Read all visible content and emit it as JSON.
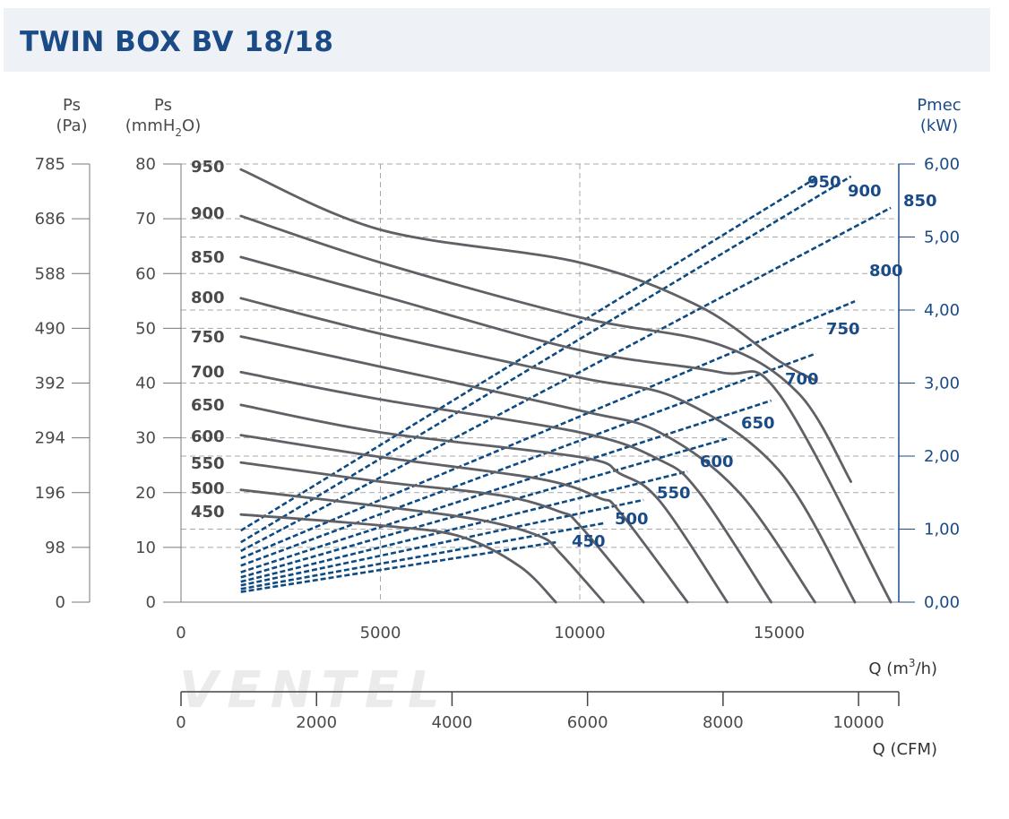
{
  "title": "TWIN BOX BV 18/18",
  "brand": "VENTEL",
  "colors": {
    "curve": "#5f6166",
    "power": "#0d4a82",
    "axis_blue": "#1a4b87",
    "text": "#4a4a4a",
    "grid": "#a8a8a8",
    "header_bg": "#eef1f5"
  },
  "chart_data": {
    "type": "line",
    "title": "TWIN BOX BV 18/18",
    "x_axes": {
      "primary": {
        "label": "Q (m3/h)",
        "label_base": "Q (m",
        "label_sup": "3",
        "label_tail": "/h)",
        "range": [
          0,
          18000
        ],
        "ticks": [
          "0",
          "5000",
          "10000",
          "15000"
        ],
        "tick_values": [
          0,
          5000,
          10000,
          15000
        ]
      },
      "secondary": {
        "label": "Q (CFM)",
        "range": [
          0,
          10594
        ],
        "ticks": [
          "0",
          "2000",
          "4000",
          "6000",
          "8000",
          "10000"
        ],
        "tick_values": [
          0,
          2000,
          4000,
          6000,
          8000,
          10000
        ]
      }
    },
    "y_axes": {
      "pa": {
        "label_top": "Ps",
        "label_bottom": "(Pa)",
        "ticks": [
          "0",
          "98",
          "196",
          "294",
          "392",
          "490",
          "588",
          "686",
          "785"
        ]
      },
      "mmh2o": {
        "label_top": "Ps",
        "label_bottom": "(mmH2O)",
        "label_bottom_base": "(mmH",
        "label_bottom_sub": "2",
        "label_bottom_tail": "O)",
        "range": [
          0,
          80
        ],
        "ticks": [
          "0",
          "10",
          "20",
          "30",
          "40",
          "50",
          "60",
          "70",
          "80"
        ],
        "tick_values": [
          0,
          10,
          20,
          30,
          40,
          50,
          60,
          70,
          80
        ]
      },
      "power": {
        "label_top": "Pmec",
        "label_bottom": "(kW)",
        "range": [
          0,
          6
        ],
        "ticks": [
          "0,00",
          "1,00",
          "2,00",
          "3,00",
          "4,00",
          "5,00",
          "6,00"
        ],
        "tick_values": [
          0,
          1,
          2,
          3,
          4,
          5,
          6
        ]
      }
    },
    "grid": true,
    "pressure_series": [
      {
        "name": "950",
        "x": [
          1500,
          5000,
          10000,
          13000,
          15000,
          15900
        ],
        "y": [
          79,
          68,
          62,
          54,
          44,
          40.5
        ]
      },
      {
        "name": "900",
        "x": [
          1500,
          5000,
          10000,
          13500,
          15500,
          16800
        ],
        "y": [
          70.5,
          62,
          52,
          47,
          38,
          22
        ]
      },
      {
        "name": "850",
        "x": [
          1500,
          5000,
          10000,
          13500,
          15000,
          17800
        ],
        "y": [
          63,
          56,
          46,
          42,
          38,
          0
        ]
      },
      {
        "name": "800",
        "x": [
          1500,
          5000,
          10000,
          12500,
          15000,
          16900
        ],
        "y": [
          55.5,
          49,
          41,
          37,
          24,
          0
        ]
      },
      {
        "name": "750",
        "x": [
          1500,
          5000,
          10000,
          12000,
          14000,
          15900
        ],
        "y": [
          48.5,
          43,
          35,
          31,
          20,
          0
        ]
      },
      {
        "name": "700",
        "x": [
          1500,
          5000,
          10000,
          12000,
          13000,
          14800
        ],
        "y": [
          42,
          37,
          31,
          26,
          20,
          0
        ]
      },
      {
        "name": "650",
        "x": [
          1500,
          5000,
          10000,
          11000,
          12000,
          13700
        ],
        "y": [
          36,
          31,
          26.5,
          23.5,
          18.5,
          0
        ]
      },
      {
        "name": "600",
        "x": [
          1500,
          5000,
          9000,
          10500,
          11000,
          12700
        ],
        "y": [
          30.5,
          26.5,
          22.5,
          19,
          16.5,
          0
        ]
      },
      {
        "name": "550",
        "x": [
          1500,
          5000,
          8000,
          9500,
          10000,
          11600
        ],
        "y": [
          25.5,
          22,
          19.5,
          16.5,
          14,
          0
        ]
      },
      {
        "name": "500",
        "x": [
          1500,
          5000,
          7500,
          9000,
          9500,
          10600
        ],
        "y": [
          20.5,
          17.5,
          15,
          12,
          9,
          0
        ]
      },
      {
        "name": "450",
        "x": [
          1500,
          5000,
          7000,
          8500,
          9400
        ],
        "y": [
          16,
          14,
          12,
          6.5,
          0
        ]
      }
    ],
    "power_series": [
      {
        "name": "450",
        "x": [
          1500,
          9400
        ],
        "y": [
          0.14,
          0.82
        ]
      },
      {
        "name": "500",
        "x": [
          1500,
          10600
        ],
        "y": [
          0.18,
          1.08
        ]
      },
      {
        "name": "550",
        "x": [
          1500,
          11600
        ],
        "y": [
          0.23,
          1.4
        ]
      },
      {
        "name": "600",
        "x": [
          1500,
          12700
        ],
        "y": [
          0.28,
          1.79
        ]
      },
      {
        "name": "650",
        "x": [
          1500,
          13700
        ],
        "y": [
          0.34,
          2.24
        ]
      },
      {
        "name": "700",
        "x": [
          1500,
          14800
        ],
        "y": [
          0.41,
          2.76
        ]
      },
      {
        "name": "750",
        "x": [
          1500,
          15900
        ],
        "y": [
          0.5,
          3.4
        ]
      },
      {
        "name": "800",
        "x": [
          1500,
          16900
        ],
        "y": [
          0.6,
          4.12
        ]
      },
      {
        "name": "850",
        "x": [
          1500,
          17800
        ],
        "y": [
          0.7,
          5.4
        ]
      },
      {
        "name": "900",
        "x": [
          1500,
          16800
        ],
        "y": [
          0.82,
          5.83
        ]
      },
      {
        "name": "950",
        "x": [
          1500,
          15900
        ],
        "y": [
          0.98,
          5.8
        ]
      }
    ],
    "pressure_labels": [
      "950",
      "900",
      "850",
      "800",
      "750",
      "700",
      "650",
      "600",
      "550",
      "500",
      "450"
    ],
    "power_labels": [
      "950",
      "900",
      "850",
      "800",
      "750",
      "700",
      "650",
      "600",
      "550",
      "500",
      "450"
    ]
  }
}
